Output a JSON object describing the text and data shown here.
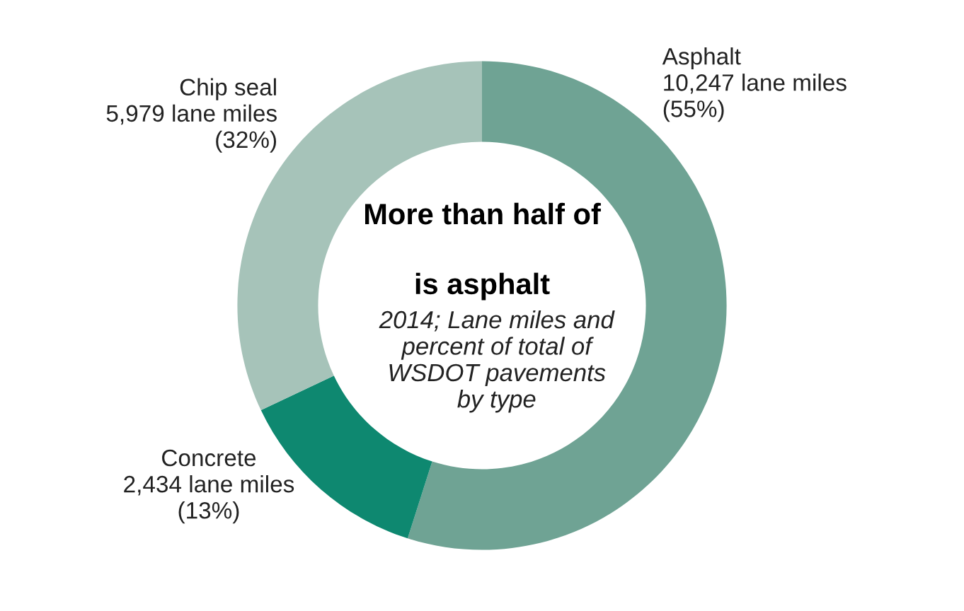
{
  "chart_data": {
    "type": "donut",
    "title": "More than half of\n\nis asphalt",
    "subtitle": "2014; Lane miles and\npercent of total of\nWSDOT pavements\nby type",
    "categories": [
      "Asphalt",
      "Concrete",
      "Chip seal"
    ],
    "values": [
      10247,
      2434,
      5979
    ],
    "colors": [
      "#6fa394",
      "#0e8870",
      "#a6c3b9"
    ],
    "value_labels": [
      "10,247 lane miles\n(55%)",
      "2,434 lane miles\n(13%)",
      "5,979 lane miles\n(32%)"
    ],
    "legend": false
  }
}
